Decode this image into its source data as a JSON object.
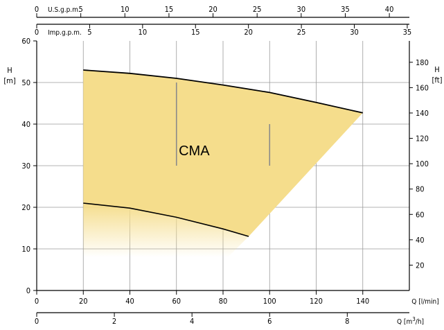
{
  "chart_data": {
    "type": "area",
    "region_label": "CMA",
    "fill_color": "#f5dd8c",
    "curve_color": "#000000",
    "grid_color": "#9a9a9a",
    "y_left": {
      "title_line1": "H",
      "title_line2": "[m]",
      "range": [
        0,
        60
      ],
      "ticks": [
        "0",
        "10",
        "20",
        "30",
        "40",
        "50",
        "60"
      ]
    },
    "y_right": {
      "title_line1": "H",
      "title_line2": "[ft]",
      "range": [
        0,
        196.85
      ],
      "ticks": [
        "20",
        "40",
        "60",
        "80",
        "100",
        "120",
        "140",
        "160",
        "180"
      ]
    },
    "x_main": {
      "title": "Q [l/min]",
      "range": [
        0,
        160
      ],
      "ticks": [
        "0",
        "20",
        "40",
        "60",
        "80",
        "100",
        "120",
        "140"
      ]
    },
    "x_m3h": {
      "title_prefix": "Q [m",
      "title_sup": "3",
      "title_suffix": "/h]",
      "range": [
        0,
        9.6
      ],
      "ticks": [
        "0",
        "2",
        "4",
        "6",
        "8"
      ]
    },
    "x_usgpm": {
      "title": "U.S.g.p.m.",
      "range": [
        0,
        42.27
      ],
      "ticks": [
        "5",
        "10",
        "15",
        "20",
        "25",
        "30",
        "35",
        "40"
      ]
    },
    "x_impgpm": {
      "title": "Imp.g.p.m.",
      "range": [
        0,
        35.2
      ],
      "ticks": [
        "0",
        "5",
        "10",
        "15",
        "20",
        "25",
        "30",
        "35"
      ]
    },
    "upper_curve": {
      "x": [
        20,
        40,
        60,
        80,
        100,
        120,
        140
      ],
      "y": [
        53,
        52.2,
        51,
        49.4,
        47.6,
        45.2,
        42.7
      ]
    },
    "lower_curve": {
      "x": [
        20,
        40,
        60,
        80,
        91
      ],
      "y": [
        21,
        19.8,
        17.6,
        14.8,
        13
      ]
    },
    "marker_lines": [
      {
        "x": 60,
        "y_from": 30,
        "y_to": 50
      },
      {
        "x": 100,
        "y_from": 30,
        "y_to": 40
      }
    ]
  }
}
